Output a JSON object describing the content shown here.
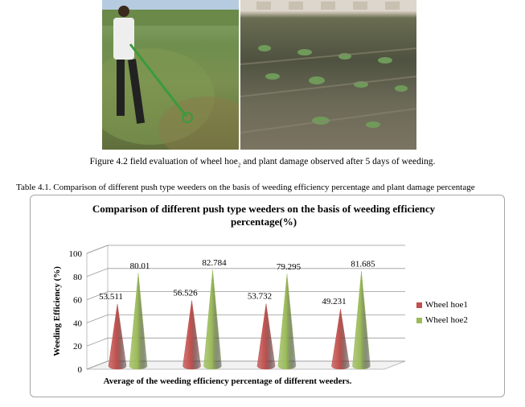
{
  "figure_caption_pre": "Figure 4.2 field evaluation of wheel hoe",
  "figure_caption_sub": "2",
  "figure_caption_post": " and plant damage observed after 5 days of weeding.",
  "table_caption": "Table 4.1. Comparison of different push type weeders on the basis of weeding efficiency percentage and plant damage percentage",
  "colors": {
    "hoe1": "#c0504d",
    "hoe2": "#9bbb59",
    "gridline": "#999999"
  },
  "chart_data": {
    "type": "bar",
    "style": "3d-cone",
    "title": "Comparison of different push type weeders on the basis of weeding efficiency percentage(%)",
    "xlabel": "Average of the weeding efficiency percentage of different weeders.",
    "ylabel": "Weeding Efficiency (%)",
    "ylim": [
      0,
      100
    ],
    "yticks": [
      0,
      20,
      40,
      60,
      80,
      100
    ],
    "grid": true,
    "legend_position": "right",
    "categories": [
      "",
      "",
      "",
      ""
    ],
    "series": [
      {
        "name": "Wheel hoe1",
        "values": [
          53.511,
          56.526,
          53.732,
          49.231
        ],
        "labels": [
          "53.511",
          "56.526",
          "53.732",
          "49.231"
        ]
      },
      {
        "name": "Wheel hoe2",
        "values": [
          80.01,
          82.784,
          79.295,
          81.685
        ],
        "labels": [
          "80.01",
          "82.784",
          "79.295",
          "81.685"
        ]
      }
    ]
  }
}
